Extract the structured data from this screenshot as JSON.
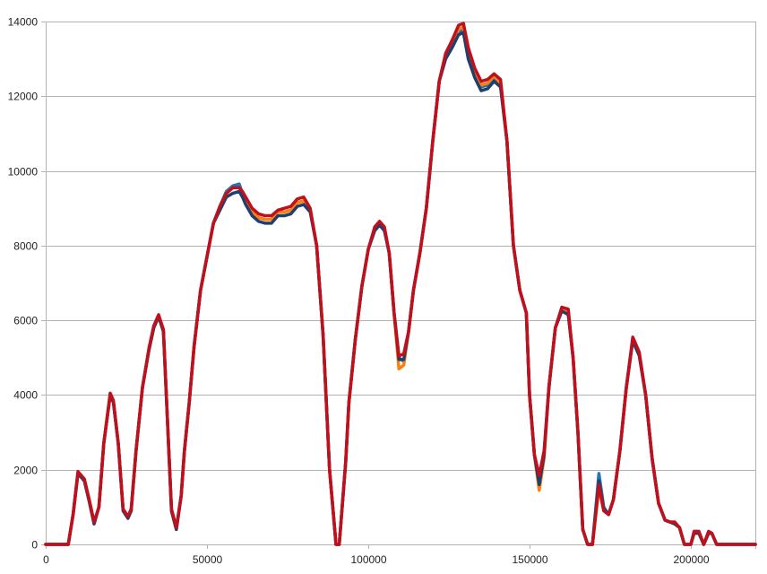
{
  "chart_data": {
    "type": "line",
    "title": "",
    "xlabel": "",
    "ylabel": "",
    "xlim": [
      0,
      220000
    ],
    "ylim": [
      0,
      14000
    ],
    "grid": "horizontal",
    "legend": "none",
    "x_ticks": [
      0,
      50000,
      100000,
      150000,
      200000
    ],
    "x_tick_labels": [
      "0",
      "50000",
      "100000",
      "150000",
      "200000"
    ],
    "y_ticks": [
      0,
      2000,
      4000,
      6000,
      8000,
      10000,
      12000,
      14000
    ],
    "y_tick_labels": [
      "0",
      "2000",
      "4000",
      "6000",
      "8000",
      "10000",
      "12000",
      "14000"
    ],
    "series": [
      {
        "color": "#1f77b4",
        "x": [
          0,
          7000,
          8500,
          10000,
          12000,
          13500,
          15000,
          16500,
          18000,
          20000,
          21000,
          22500,
          24000,
          25500,
          26500,
          28000,
          30000,
          32000,
          33500,
          35000,
          36500,
          37500,
          39000,
          40500,
          42000,
          43000,
          44500,
          46000,
          48000,
          50000,
          52000,
          54000,
          56000,
          58000,
          60000,
          61000,
          62000,
          64000,
          66000,
          68000,
          70000,
          72000,
          74000,
          76000,
          78000,
          80000,
          82000,
          84000,
          86000,
          88000,
          90000,
          91000,
          93000,
          94000,
          96000,
          98000,
          100000,
          102000,
          103500,
          105000,
          106500,
          108000,
          109500,
          111000,
          112500,
          114000,
          116000,
          118000,
          120000,
          122000,
          124000,
          126000,
          128000,
          129500,
          131000,
          133000,
          135000,
          137000,
          139000,
          141000,
          143000,
          145000,
          147000,
          149000,
          150000,
          151500,
          153000,
          154500,
          156000,
          158000,
          160000,
          162000,
          163500,
          165000,
          166500,
          168000,
          169500,
          171500,
          173000,
          174500,
          176000,
          178000,
          180000,
          182000,
          184000,
          186000,
          188000,
          190000,
          192000,
          193500,
          195000,
          196500,
          198000,
          200000,
          201000,
          202500,
          204000,
          205500,
          206500,
          208000,
          210000,
          214000,
          220000
        ],
        "y": [
          0,
          0,
          800,
          1900,
          1700,
          1150,
          550,
          1000,
          2700,
          4000,
          3800,
          2700,
          900,
          700,
          900,
          2500,
          4200,
          5200,
          5800,
          6100,
          5700,
          3800,
          900,
          400,
          1300,
          2500,
          3800,
          5300,
          6800,
          7700,
          8600,
          9050,
          9450,
          9600,
          9650,
          9400,
          9200,
          8900,
          8750,
          8700,
          8700,
          8900,
          8900,
          8950,
          9150,
          9200,
          8950,
          8000,
          5600,
          2000,
          0,
          0,
          2200,
          3800,
          5500,
          6900,
          7900,
          8450,
          8600,
          8450,
          7800,
          6200,
          5000,
          4900,
          5700,
          6800,
          7800,
          9000,
          10800,
          12400,
          13100,
          13400,
          13700,
          13800,
          13100,
          12600,
          12250,
          12300,
          12500,
          12300,
          10800,
          8000,
          6800,
          6200,
          4000,
          2400,
          1700,
          2400,
          4200,
          5800,
          6300,
          6200,
          5000,
          3000,
          400,
          0,
          0,
          1900,
          1000,
          800,
          1200,
          2500,
          4200,
          5500,
          5100,
          4000,
          2300,
          1100,
          650,
          600,
          550,
          450,
          0,
          0,
          300,
          300,
          0,
          300,
          300,
          0,
          0,
          0,
          0
        ]
      },
      {
        "color": "#ff7f0e",
        "x": [
          0,
          7000,
          8500,
          10000,
          12000,
          13500,
          15000,
          16500,
          18000,
          20000,
          21000,
          22500,
          24000,
          25500,
          26500,
          28000,
          30000,
          32000,
          33500,
          35000,
          36500,
          37500,
          39000,
          40500,
          42000,
          43000,
          44500,
          46000,
          48000,
          50000,
          52000,
          54000,
          56000,
          58000,
          60000,
          61000,
          62000,
          64000,
          66000,
          68000,
          70000,
          72000,
          74000,
          76000,
          78000,
          80000,
          82000,
          84000,
          86000,
          88000,
          90000,
          91000,
          93000,
          94000,
          96000,
          98000,
          100000,
          102000,
          103500,
          105000,
          106500,
          108000,
          109500,
          111000,
          112500,
          114000,
          116000,
          118000,
          120000,
          122000,
          124000,
          126000,
          128000,
          129500,
          131000,
          133000,
          135000,
          137000,
          139000,
          141000,
          143000,
          145000,
          147000,
          149000,
          150000,
          151500,
          153000,
          154500,
          156000,
          158000,
          160000,
          162000,
          163500,
          165000,
          166500,
          168000,
          169500,
          171500,
          173000,
          174500,
          176000,
          178000,
          180000,
          182000,
          184000,
          186000,
          188000,
          190000,
          192000,
          193500,
          195000,
          196500,
          198000,
          200000,
          201000,
          202500,
          204000,
          205500,
          206500,
          208000,
          210000,
          214000,
          220000
        ],
        "y": [
          0,
          0,
          800,
          1900,
          1700,
          1150,
          550,
          1000,
          2700,
          4000,
          3800,
          2700,
          900,
          700,
          900,
          2500,
          4200,
          5200,
          5800,
          6100,
          5700,
          3800,
          900,
          400,
          1300,
          2500,
          3800,
          5300,
          6800,
          7700,
          8600,
          9000,
          9400,
          9550,
          9550,
          9400,
          9200,
          8900,
          8750,
          8700,
          8700,
          8900,
          8900,
          8950,
          9150,
          9200,
          8950,
          8000,
          5600,
          2000,
          0,
          0,
          2200,
          3800,
          5500,
          6900,
          7900,
          8450,
          8600,
          8450,
          7800,
          6200,
          4700,
          4800,
          5700,
          6800,
          7800,
          9000,
          10800,
          12400,
          13100,
          13400,
          13800,
          13850,
          13200,
          12700,
          12300,
          12350,
          12550,
          12350,
          10800,
          8000,
          6800,
          6200,
          4000,
          2400,
          1450,
          2300,
          4200,
          5800,
          6300,
          6200,
          5000,
          3000,
          400,
          0,
          0,
          1500,
          900,
          800,
          1200,
          2500,
          4200,
          5500,
          5100,
          4000,
          2300,
          1100,
          650,
          600,
          550,
          450,
          0,
          0,
          300,
          300,
          0,
          300,
          300,
          0,
          0,
          0,
          0
        ]
      },
      {
        "color": "#1f3f6e",
        "x": [
          0,
          7000,
          8500,
          10000,
          12000,
          13500,
          15000,
          16500,
          18000,
          20000,
          21000,
          22500,
          24000,
          25500,
          26500,
          28000,
          30000,
          32000,
          33500,
          35000,
          36500,
          37500,
          39000,
          40500,
          42000,
          43000,
          44500,
          46000,
          48000,
          50000,
          52000,
          54000,
          56000,
          58000,
          60000,
          61000,
          62000,
          64000,
          66000,
          68000,
          70000,
          72000,
          74000,
          76000,
          78000,
          80000,
          82000,
          84000,
          86000,
          88000,
          90000,
          91000,
          93000,
          94000,
          96000,
          98000,
          100000,
          102000,
          103500,
          105000,
          106500,
          108000,
          109500,
          111000,
          112500,
          114000,
          116000,
          118000,
          120000,
          122000,
          124000,
          126000,
          128000,
          129500,
          131000,
          133000,
          135000,
          137000,
          139000,
          141000,
          143000,
          145000,
          147000,
          149000,
          150000,
          151500,
          153000,
          154500,
          156000,
          158000,
          160000,
          162000,
          163500,
          165000,
          166500,
          168000,
          169500,
          171500,
          173000,
          174500,
          176000,
          178000,
          180000,
          182000,
          184000,
          186000,
          188000,
          190000,
          192000,
          193500,
          195000,
          196500,
          198000,
          200000,
          201000,
          202500,
          204000,
          205500,
          206500,
          208000,
          210000,
          214000,
          220000
        ],
        "y": [
          0,
          0,
          800,
          1900,
          1700,
          1150,
          550,
          1000,
          2700,
          4000,
          3800,
          2700,
          900,
          700,
          900,
          2500,
          4200,
          5200,
          5800,
          6100,
          5700,
          3800,
          900,
          400,
          1300,
          2500,
          3800,
          5300,
          6800,
          7700,
          8600,
          8950,
          9300,
          9400,
          9450,
          9300,
          9100,
          8800,
          8650,
          8600,
          8600,
          8800,
          8800,
          8850,
          9050,
          9100,
          8900,
          8000,
          5600,
          2000,
          0,
          0,
          2200,
          3800,
          5500,
          6900,
          7900,
          8400,
          8550,
          8400,
          7800,
          6200,
          4950,
          4950,
          5700,
          6800,
          7800,
          9000,
          10800,
          12400,
          13000,
          13300,
          13650,
          13700,
          13000,
          12500,
          12150,
          12200,
          12400,
          12250,
          10800,
          8000,
          6800,
          6200,
          4000,
          2400,
          1600,
          2400,
          4200,
          5800,
          6250,
          6150,
          5000,
          3000,
          400,
          0,
          0,
          1700,
          950,
          800,
          1200,
          2500,
          4200,
          5450,
          5050,
          4000,
          2300,
          1100,
          650,
          600,
          550,
          450,
          0,
          0,
          300,
          300,
          0,
          300,
          300,
          0,
          0,
          0,
          0
        ]
      },
      {
        "color": "#c0101e",
        "x": [
          0,
          7000,
          8500,
          10000,
          12000,
          13500,
          15000,
          16500,
          18000,
          20000,
          21000,
          22500,
          24000,
          25500,
          26500,
          28000,
          30000,
          32000,
          33500,
          35000,
          36500,
          37500,
          39000,
          40500,
          42000,
          43000,
          44500,
          46000,
          48000,
          50000,
          52000,
          54000,
          56000,
          58000,
          60000,
          61000,
          62000,
          64000,
          66000,
          68000,
          70000,
          72000,
          74000,
          76000,
          78000,
          80000,
          82000,
          84000,
          86000,
          88000,
          90000,
          91000,
          93000,
          94000,
          96000,
          98000,
          100000,
          102000,
          103500,
          105000,
          106500,
          108000,
          109500,
          111000,
          112500,
          114000,
          116000,
          118000,
          120000,
          122000,
          124000,
          126000,
          128000,
          129500,
          131000,
          133000,
          135000,
          137000,
          139000,
          141000,
          143000,
          145000,
          147000,
          149000,
          150000,
          151500,
          153000,
          154500,
          156000,
          158000,
          160000,
          162000,
          163500,
          165000,
          166500,
          168000,
          169500,
          171500,
          173000,
          174500,
          176000,
          178000,
          180000,
          182000,
          184000,
          186000,
          188000,
          190000,
          192000,
          193500,
          195000,
          196500,
          198000,
          200000,
          201000,
          202500,
          204000,
          205500,
          206500,
          208000,
          210000,
          214000,
          220000
        ],
        "y": [
          0,
          0,
          800,
          1950,
          1750,
          1200,
          600,
          1000,
          2700,
          4050,
          3850,
          2700,
          950,
          750,
          950,
          2500,
          4200,
          5250,
          5850,
          6150,
          5750,
          3800,
          950,
          450,
          1300,
          2500,
          3800,
          5300,
          6800,
          7700,
          8600,
          9050,
          9400,
          9550,
          9550,
          9450,
          9300,
          9000,
          8850,
          8800,
          8800,
          8950,
          9000,
          9050,
          9250,
          9300,
          9000,
          8000,
          5600,
          2000,
          0,
          0,
          2200,
          3800,
          5500,
          6900,
          7900,
          8500,
          8650,
          8500,
          7800,
          6200,
          5050,
          5100,
          5700,
          6800,
          7800,
          9000,
          10800,
          12400,
          13150,
          13500,
          13900,
          13950,
          13300,
          12750,
          12400,
          12450,
          12600,
          12450,
          10800,
          8000,
          6800,
          6200,
          4000,
          2400,
          1850,
          2500,
          4200,
          5800,
          6350,
          6300,
          5000,
          3000,
          400,
          0,
          0,
          1600,
          900,
          800,
          1200,
          2500,
          4200,
          5550,
          5150,
          4000,
          2300,
          1100,
          650,
          600,
          600,
          450,
          0,
          0,
          350,
          350,
          0,
          350,
          300,
          0,
          0,
          0,
          0
        ]
      }
    ]
  }
}
